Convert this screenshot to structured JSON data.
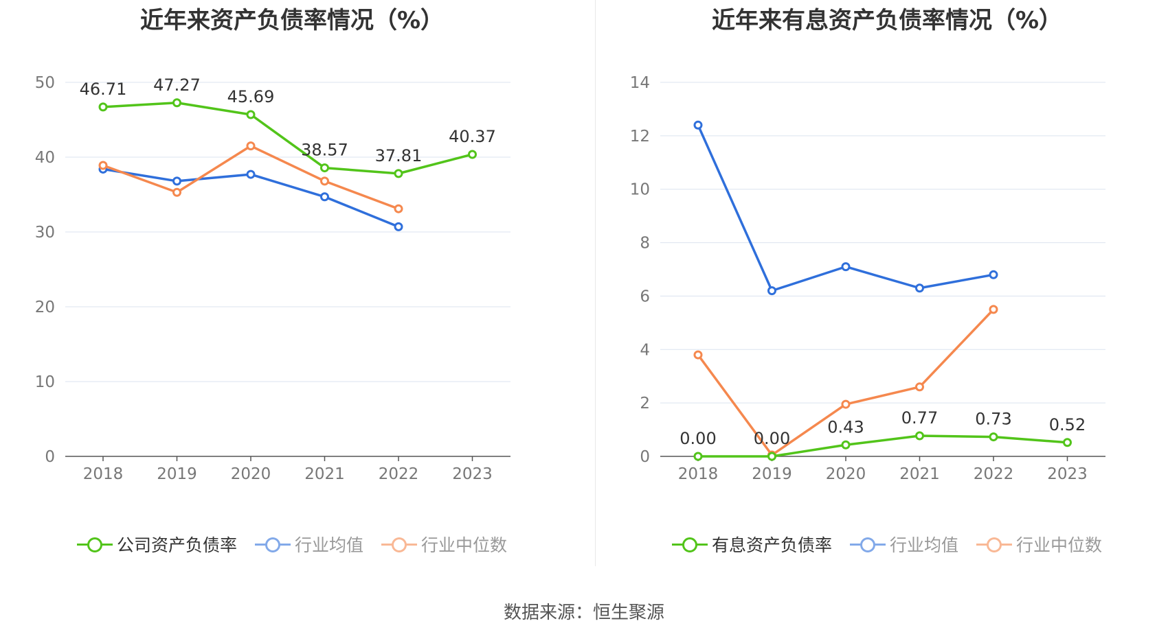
{
  "chart_data": [
    {
      "type": "line",
      "title": "近年来资产负债率情况（%）",
      "categories": [
        "2018",
        "2019",
        "2020",
        "2021",
        "2022",
        "2023"
      ],
      "ylim": [
        0,
        50
      ],
      "yticks": [
        0,
        10,
        20,
        30,
        40,
        50
      ],
      "grid": true,
      "legend_position": "bottom",
      "series": [
        {
          "name": "公司资产负债率",
          "color": "#52c41a",
          "values": [
            46.71,
            47.27,
            45.69,
            38.57,
            37.81,
            40.37
          ],
          "labels": [
            "46.71",
            "47.27",
            "45.69",
            "38.57",
            "37.81",
            "40.37"
          ],
          "show_labels": true,
          "dim": false
        },
        {
          "name": "行业均值",
          "color": "#2f6fdb",
          "values": [
            38.4,
            36.8,
            37.7,
            34.7,
            30.7,
            null
          ],
          "show_labels": false,
          "dim": true
        },
        {
          "name": "行业中位数",
          "color": "#f5884e",
          "values": [
            38.9,
            35.3,
            41.5,
            36.8,
            33.1,
            null
          ],
          "show_labels": false,
          "dim": true
        }
      ]
    },
    {
      "type": "line",
      "title": "近年来有息资产负债率情况（%）",
      "categories": [
        "2018",
        "2019",
        "2020",
        "2021",
        "2022",
        "2023"
      ],
      "ylim": [
        0,
        14
      ],
      "yticks": [
        0,
        2,
        4,
        6,
        8,
        10,
        12,
        14
      ],
      "grid": true,
      "legend_position": "bottom",
      "series": [
        {
          "name": "有息资产负债率",
          "color": "#52c41a",
          "values": [
            0.0,
            0.0,
            0.43,
            0.77,
            0.73,
            0.52
          ],
          "labels": [
            "0.00",
            "0.00",
            "0.43",
            "0.77",
            "0.73",
            "0.52"
          ],
          "show_labels": true,
          "dim": false
        },
        {
          "name": "行业均值",
          "color": "#2f6fdb",
          "values": [
            12.4,
            6.2,
            7.1,
            6.3,
            6.8,
            null
          ],
          "show_labels": false,
          "dim": true
        },
        {
          "name": "行业中位数",
          "color": "#f5884e",
          "values": [
            3.8,
            0.05,
            1.95,
            2.6,
            5.5,
            null
          ],
          "show_labels": false,
          "dim": true
        }
      ]
    }
  ],
  "source": "数据来源：恒生聚源"
}
